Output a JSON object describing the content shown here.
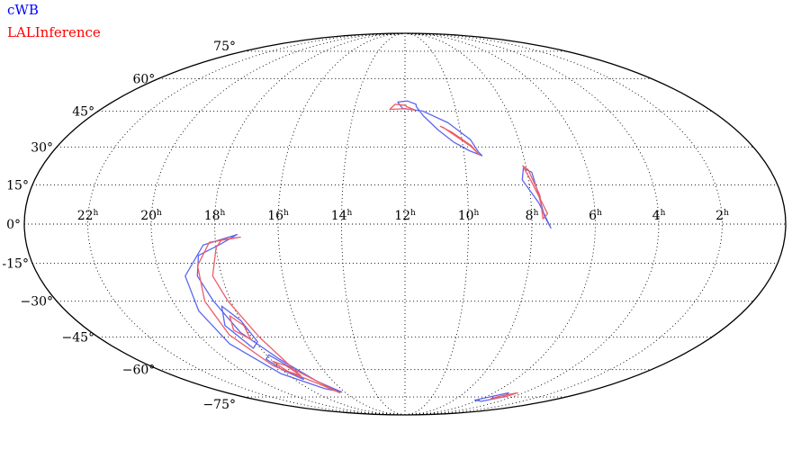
{
  "legend": [
    {
      "name": "cWB",
      "color": "#0000ff"
    },
    {
      "name": "LALInference",
      "color": "#ff0000"
    }
  ],
  "projection": "mollweide",
  "ra_labels": [
    "22h",
    "20h",
    "18h",
    "16h",
    "14h",
    "12h",
    "10h",
    "8h",
    "6h",
    "4h",
    "2h"
  ],
  "ra_hours": [
    22,
    20,
    18,
    16,
    14,
    12,
    10,
    8,
    6,
    4,
    2
  ],
  "dec_labels": [
    "75°",
    "60°",
    "45°",
    "30°",
    "15°",
    "0°",
    "-15°",
    "−30°",
    "−45°",
    "−60°",
    "−75°"
  ],
  "dec_values": [
    75,
    60,
    45,
    30,
    15,
    0,
    -15,
    -30,
    -45,
    -60,
    -75
  ],
  "colors": {
    "cwb": "#5b66ee",
    "lal": "#ee5c66"
  },
  "regions": {
    "cwb": [
      [
        [
          11.55,
          48
        ],
        [
          11.9,
          49.5
        ],
        [
          12.3,
          49
        ],
        [
          12.1,
          46.2
        ],
        [
          11.3,
          45
        ],
        [
          10.4,
          40
        ],
        [
          9.7,
          33
        ],
        [
          9.5,
          28
        ],
        [
          9.4,
          26.5
        ],
        [
          9.8,
          28.5
        ],
        [
          10.3,
          32
        ],
        [
          10.8,
          37
        ],
        [
          11.3,
          43
        ],
        [
          11.55,
          47
        ]
      ],
      [
        [
          8.1,
          21.5
        ],
        [
          7.85,
          20
        ],
        [
          7.75,
          12
        ],
        [
          7.6,
          3
        ],
        [
          7.4,
          -1.5
        ],
        [
          7.75,
          8
        ],
        [
          8.2,
          17
        ]
      ],
      [
        [
          17.3,
          -4
        ],
        [
          17.9,
          -8
        ],
        [
          18.6,
          -12
        ],
        [
          18.8,
          -20
        ],
        [
          18.6,
          -30
        ],
        [
          18.3,
          -43
        ],
        [
          17.6,
          -55
        ],
        [
          16.9,
          -66
        ],
        [
          16.2,
          -72
        ],
        [
          17.0,
          -70
        ],
        [
          18.3,
          -62
        ],
        [
          19.1,
          -48
        ],
        [
          19.3,
          -34
        ],
        [
          19.2,
          -20
        ],
        [
          18.4,
          -8
        ]
      ],
      [
        [
          18.4,
          -32
        ],
        [
          18.7,
          -40
        ],
        [
          18.3,
          -50
        ],
        [
          17.9,
          -47
        ],
        [
          18.0,
          -38
        ]
      ],
      [
        [
          18.2,
          -55
        ],
        [
          18.0,
          -60
        ],
        [
          17.5,
          -65
        ],
        [
          17.4,
          -60
        ],
        [
          17.9,
          -53
        ]
      ],
      [
        [
          6.3,
          -77
        ],
        [
          5.6,
          -74.5
        ],
        [
          5.0,
          -72.5
        ],
        [
          4.7,
          -75
        ],
        [
          5.5,
          -77.8
        ]
      ]
    ],
    "lal": [
      [
        [
          11.95,
          47.5
        ],
        [
          12.4,
          48
        ],
        [
          12.6,
          45.8
        ],
        [
          12.0,
          46
        ],
        [
          11.6,
          45.5
        ],
        [
          11.95,
          47
        ]
      ],
      [
        [
          10.7,
          38.5
        ],
        [
          10.3,
          36
        ],
        [
          9.7,
          30.5
        ],
        [
          9.5,
          27
        ],
        [
          9.7,
          30
        ],
        [
          10.2,
          34.5
        ],
        [
          10.6,
          38
        ]
      ],
      [
        [
          8.1,
          22.5
        ],
        [
          7.95,
          21
        ],
        [
          7.7,
          11
        ],
        [
          7.65,
          2
        ],
        [
          7.5,
          4
        ],
        [
          7.9,
          16
        ]
      ],
      [
        [
          17.2,
          -5
        ],
        [
          17.8,
          -6
        ],
        [
          18.0,
          -9
        ],
        [
          18.3,
          -20
        ],
        [
          18.1,
          -30
        ],
        [
          17.7,
          -45
        ],
        [
          17.4,
          -60
        ],
        [
          16.4,
          -72.5
        ],
        [
          16.9,
          -68
        ],
        [
          18.2,
          -58
        ],
        [
          18.8,
          -44
        ],
        [
          18.9,
          -30
        ],
        [
          18.7,
          -16
        ],
        [
          18.2,
          -7
        ]
      ],
      [
        [
          18.3,
          -36
        ],
        [
          18.5,
          -42
        ],
        [
          18.1,
          -46
        ],
        [
          18.0,
          -40
        ]
      ],
      [
        [
          18.0,
          -56
        ],
        [
          17.8,
          -61
        ],
        [
          17.4,
          -63
        ],
        [
          17.6,
          -58
        ]
      ],
      [
        [
          5.3,
          -76
        ],
        [
          5.0,
          -74.2
        ],
        [
          4.4,
          -72.5
        ],
        [
          4.6,
          -75
        ]
      ]
    ]
  }
}
